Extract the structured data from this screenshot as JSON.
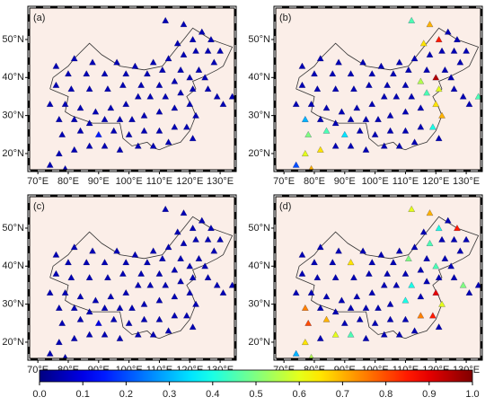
{
  "chart_data": [
    {
      "type": "map",
      "label": "(a)",
      "colormap": "jet",
      "xlim": [
        67,
        135
      ],
      "ylim": [
        15.5,
        58.5
      ],
      "xticks": [
        {
          "value": 70,
          "label": "70°E"
        },
        {
          "value": 80,
          "label": "80°E"
        },
        {
          "value": 90,
          "label": "90°E"
        },
        {
          "value": 100,
          "label": "100°E"
        },
        {
          "value": 110,
          "label": "110°E"
        },
        {
          "value": 120,
          "label": "120°E"
        },
        {
          "value": 130,
          "label": "130°E"
        }
      ],
      "yticks": [
        {
          "value": 20,
          "label": "20°N"
        },
        {
          "value": 30,
          "label": "30°N"
        },
        {
          "value": 40,
          "label": "40°N"
        },
        {
          "value": 50,
          "label": "50°N"
        }
      ],
      "x": [
        112,
        118,
        124,
        127,
        121,
        116,
        130,
        126,
        122,
        118,
        113,
        108,
        102,
        96,
        88,
        82,
        76,
        80,
        86,
        92,
        99,
        106,
        111,
        117,
        123,
        128,
        125,
        120,
        115,
        110,
        104,
        98,
        93,
        87,
        81,
        76,
        79,
        84,
        89,
        94,
        99,
        103,
        107,
        112,
        117,
        121,
        120,
        115,
        110,
        105,
        101,
        97,
        92,
        87,
        82,
        77,
        74,
        78,
        84,
        90,
        95,
        100,
        105,
        110,
        115,
        119,
        122,
        113,
        108,
        103,
        97,
        92,
        87,
        82,
        77,
        74,
        79,
        126,
        129,
        131,
        134,
        121
      ],
      "y": [
        55,
        54,
        52,
        50,
        50,
        49,
        47,
        47,
        47,
        46,
        45,
        44,
        43,
        44,
        44,
        45,
        43,
        41,
        41,
        41,
        41,
        41,
        42,
        42,
        42,
        44,
        40,
        40,
        39,
        38,
        38,
        38,
        37,
        37,
        37,
        38,
        33,
        32,
        31,
        32,
        33,
        35,
        35,
        35,
        36,
        37,
        33,
        32,
        31,
        30,
        29,
        29,
        29,
        28,
        29,
        29,
        33,
        25,
        26,
        25,
        26,
        25,
        26,
        26,
        27,
        27,
        30,
        23,
        22,
        22,
        21,
        22,
        22,
        21,
        20,
        17,
        16,
        37,
        35,
        33,
        35,
        24
      ],
      "values": [
        0.05,
        0.05,
        0.05,
        0.05,
        0.05,
        0.05,
        0.05,
        0.05,
        0.05,
        0.05,
        0.05,
        0.05,
        0.05,
        0.05,
        0.05,
        0.05,
        0.05,
        0.05,
        0.05,
        0.05,
        0.05,
        0.05,
        0.05,
        0.05,
        0.05,
        0.05,
        0.05,
        0.05,
        0.05,
        0.05,
        0.05,
        0.05,
        0.05,
        0.05,
        0.05,
        0.05,
        0.05,
        0.05,
        0.05,
        0.05,
        0.05,
        0.05,
        0.05,
        0.05,
        0.05,
        0.05,
        0.05,
        0.05,
        0.05,
        0.05,
        0.05,
        0.05,
        0.05,
        0.05,
        0.05,
        0.05,
        0.05,
        0.05,
        0.05,
        0.15,
        0.05,
        0.05,
        0.05,
        0.05,
        0.05,
        0.05,
        0.05,
        0.05,
        0.05,
        0.05,
        0.05,
        0.05,
        0.05,
        0.05,
        0.05,
        0.05,
        0.05,
        0.05,
        0.05,
        0.05,
        0.05,
        0.05
      ]
    },
    {
      "type": "map",
      "label": "(b)",
      "colormap": "jet",
      "xlim": [
        67,
        135
      ],
      "ylim": [
        15.5,
        58.5
      ],
      "xticks": [
        {
          "value": 70,
          "label": "70°E"
        },
        {
          "value": 80,
          "label": "80°E"
        },
        {
          "value": 90,
          "label": "90°E"
        },
        {
          "value": 100,
          "label": "100°E"
        },
        {
          "value": 110,
          "label": "110°E"
        },
        {
          "value": 120,
          "label": "120°E"
        },
        {
          "value": 130,
          "label": "130°E"
        }
      ],
      "yticks": [
        {
          "value": 20,
          "label": "20°N"
        },
        {
          "value": 30,
          "label": "30°N"
        },
        {
          "value": 40,
          "label": "40°N"
        },
        {
          "value": 50,
          "label": "50°N"
        }
      ],
      "x": [
        112,
        118,
        124,
        127,
        121,
        116,
        130,
        126,
        122,
        118,
        113,
        108,
        102,
        96,
        88,
        82,
        76,
        80,
        86,
        92,
        99,
        106,
        111,
        117,
        123,
        128,
        125,
        120,
        115,
        110,
        104,
        98,
        93,
        87,
        81,
        76,
        79,
        84,
        89,
        94,
        99,
        103,
        107,
        112,
        117,
        121,
        120,
        115,
        110,
        105,
        101,
        97,
        92,
        87,
        82,
        77,
        74,
        78,
        84,
        90,
        95,
        100,
        105,
        110,
        115,
        119,
        122,
        113,
        108,
        103,
        97,
        92,
        87,
        82,
        77,
        74,
        79,
        126,
        129,
        131,
        134,
        121
      ],
      "y": [
        55,
        54,
        52,
        50,
        50,
        49,
        47,
        47,
        47,
        46,
        45,
        44,
        43,
        44,
        44,
        45,
        43,
        41,
        41,
        41,
        41,
        41,
        42,
        42,
        42,
        44,
        40,
        40,
        39,
        38,
        38,
        38,
        37,
        37,
        37,
        38,
        33,
        32,
        31,
        32,
        33,
        35,
        35,
        35,
        36,
        37,
        33,
        32,
        31,
        30,
        29,
        29,
        29,
        28,
        29,
        29,
        33,
        25,
        26,
        25,
        26,
        25,
        26,
        26,
        27,
        27,
        30,
        23,
        22,
        22,
        21,
        22,
        22,
        21,
        20,
        17,
        16,
        37,
        35,
        33,
        35,
        24
      ],
      "values": [
        0.45,
        0.7,
        0.05,
        0.05,
        0.85,
        0.65,
        0.05,
        0.05,
        0.05,
        0.05,
        0.05,
        0.05,
        0.05,
        0.05,
        0.05,
        0.05,
        0.05,
        0.05,
        0.05,
        0.05,
        0.05,
        0.05,
        0.05,
        0.05,
        0.05,
        0.05,
        0.05,
        0.95,
        0.55,
        0.05,
        0.05,
        0.05,
        0.05,
        0.05,
        0.05,
        0.05,
        0.05,
        0.05,
        0.05,
        0.05,
        0.05,
        0.05,
        0.05,
        0.05,
        0.45,
        0.6,
        0.65,
        0.05,
        0.05,
        0.05,
        0.05,
        0.05,
        0.05,
        0.05,
        0.05,
        0.3,
        0.05,
        0.5,
        0.45,
        0.35,
        0.05,
        0.05,
        0.05,
        0.05,
        0.05,
        0.4,
        0.7,
        0.05,
        0.05,
        0.05,
        0.05,
        0.05,
        0.05,
        0.65,
        0.6,
        0.2,
        0.7,
        0.05,
        0.05,
        0.05,
        0.45,
        0.05
      ]
    },
    {
      "type": "map",
      "label": "(c)",
      "colormap": "jet",
      "xlim": [
        67,
        135
      ],
      "ylim": [
        15.5,
        58.5
      ],
      "xticks": [
        {
          "value": 70,
          "label": "70°E"
        },
        {
          "value": 80,
          "label": "80°E"
        },
        {
          "value": 90,
          "label": "90°E"
        },
        {
          "value": 100,
          "label": "100°E"
        },
        {
          "value": 110,
          "label": "110°E"
        },
        {
          "value": 120,
          "label": "120°E"
        },
        {
          "value": 130,
          "label": "130°E"
        }
      ],
      "yticks": [
        {
          "value": 20,
          "label": "20°N"
        },
        {
          "value": 30,
          "label": "30°N"
        },
        {
          "value": 40,
          "label": "40°N"
        },
        {
          "value": 50,
          "label": "50°N"
        }
      ],
      "x": [
        112,
        118,
        124,
        127,
        121,
        116,
        130,
        126,
        122,
        118,
        113,
        108,
        102,
        96,
        88,
        82,
        76,
        80,
        86,
        92,
        99,
        106,
        111,
        117,
        123,
        128,
        125,
        120,
        115,
        110,
        104,
        98,
        93,
        87,
        81,
        76,
        79,
        84,
        89,
        94,
        99,
        103,
        107,
        112,
        117,
        121,
        120,
        115,
        110,
        105,
        101,
        97,
        92,
        87,
        82,
        77,
        74,
        78,
        84,
        90,
        95,
        100,
        105,
        110,
        115,
        119,
        122,
        113,
        108,
        103,
        97,
        92,
        87,
        82,
        77,
        74,
        79,
        126,
        129,
        131,
        134,
        121
      ],
      "y": [
        55,
        54,
        52,
        50,
        50,
        49,
        47,
        47,
        47,
        46,
        45,
        44,
        43,
        44,
        44,
        45,
        43,
        41,
        41,
        41,
        41,
        41,
        42,
        42,
        42,
        44,
        40,
        40,
        39,
        38,
        38,
        38,
        37,
        37,
        37,
        38,
        33,
        32,
        31,
        32,
        33,
        35,
        35,
        35,
        36,
        37,
        33,
        32,
        31,
        30,
        29,
        29,
        29,
        28,
        29,
        29,
        33,
        25,
        26,
        25,
        26,
        25,
        26,
        26,
        27,
        27,
        30,
        23,
        22,
        22,
        21,
        22,
        22,
        21,
        20,
        17,
        16,
        37,
        35,
        33,
        35,
        24
      ],
      "values": [
        0.05,
        0.05,
        0.05,
        0.05,
        0.05,
        0.05,
        0.05,
        0.05,
        0.05,
        0.05,
        0.05,
        0.05,
        0.05,
        0.05,
        0.05,
        0.05,
        0.05,
        0.05,
        0.05,
        0.05,
        0.05,
        0.05,
        0.05,
        0.05,
        0.05,
        0.05,
        0.05,
        0.05,
        0.05,
        0.05,
        0.05,
        0.05,
        0.05,
        0.05,
        0.05,
        0.05,
        0.05,
        0.05,
        0.05,
        0.05,
        0.05,
        0.05,
        0.05,
        0.05,
        0.05,
        0.05,
        0.05,
        0.05,
        0.05,
        0.05,
        0.05,
        0.05,
        0.05,
        0.05,
        0.05,
        0.05,
        0.05,
        0.05,
        0.05,
        0.1,
        0.05,
        0.05,
        0.05,
        0.05,
        0.05,
        0.05,
        0.05,
        0.05,
        0.05,
        0.05,
        0.05,
        0.05,
        0.05,
        0.05,
        0.05,
        0.05,
        0.05,
        0.05,
        0.05,
        0.05,
        0.05,
        0.05
      ]
    },
    {
      "type": "map",
      "label": "(d)",
      "colormap": "jet",
      "xlim": [
        67,
        135
      ],
      "ylim": [
        15.5,
        58.5
      ],
      "xticks": [
        {
          "value": 70,
          "label": "70°E"
        },
        {
          "value": 80,
          "label": "80°E"
        },
        {
          "value": 90,
          "label": "90°E"
        },
        {
          "value": 100,
          "label": "100°E"
        },
        {
          "value": 110,
          "label": "110°E"
        },
        {
          "value": 120,
          "label": "120°E"
        },
        {
          "value": 130,
          "label": "130°E"
        }
      ],
      "yticks": [
        {
          "value": 20,
          "label": "20°N"
        },
        {
          "value": 30,
          "label": "30°N"
        },
        {
          "value": 40,
          "label": "40°N"
        },
        {
          "value": 50,
          "label": "50°N"
        }
      ],
      "x": [
        112,
        118,
        124,
        127,
        121,
        116,
        130,
        126,
        122,
        118,
        113,
        108,
        102,
        96,
        88,
        82,
        76,
        80,
        86,
        92,
        99,
        106,
        111,
        117,
        123,
        128,
        125,
        120,
        115,
        110,
        104,
        98,
        93,
        87,
        81,
        76,
        79,
        84,
        89,
        94,
        99,
        103,
        107,
        112,
        117,
        121,
        120,
        115,
        110,
        105,
        101,
        97,
        92,
        87,
        82,
        77,
        74,
        78,
        84,
        90,
        95,
        100,
        105,
        110,
        115,
        119,
        122,
        113,
        108,
        103,
        97,
        92,
        87,
        82,
        77,
        74,
        79,
        126,
        129,
        131,
        134,
        121
      ],
      "y": [
        55,
        54,
        52,
        50,
        50,
        49,
        47,
        47,
        47,
        46,
        45,
        44,
        43,
        44,
        44,
        45,
        43,
        41,
        41,
        41,
        41,
        41,
        42,
        42,
        42,
        44,
        40,
        40,
        39,
        38,
        38,
        38,
        37,
        37,
        37,
        38,
        33,
        32,
        31,
        32,
        33,
        35,
        35,
        35,
        36,
        37,
        33,
        32,
        31,
        30,
        29,
        29,
        29,
        28,
        29,
        29,
        33,
        25,
        26,
        25,
        26,
        25,
        26,
        26,
        27,
        27,
        30,
        23,
        22,
        22,
        21,
        22,
        22,
        21,
        20,
        17,
        16,
        37,
        35,
        33,
        35,
        24
      ],
      "values": [
        0.6,
        0.7,
        0.05,
        0.85,
        0.4,
        0.05,
        0.05,
        0.05,
        0.05,
        0.45,
        0.05,
        0.05,
        0.05,
        0.05,
        0.05,
        0.05,
        0.05,
        0.05,
        0.05,
        0.65,
        0.05,
        0.05,
        0.5,
        0.05,
        0.05,
        0.05,
        0.05,
        0.45,
        0.05,
        0.05,
        0.05,
        0.05,
        0.05,
        0.05,
        0.05,
        0.05,
        0.05,
        0.05,
        0.05,
        0.05,
        0.05,
        0.05,
        0.05,
        0.4,
        0.05,
        0.05,
        0.9,
        0.05,
        0.4,
        0.05,
        0.05,
        0.05,
        0.05,
        0.05,
        0.05,
        0.75,
        0.05,
        0.8,
        0.7,
        0.05,
        0.05,
        0.05,
        0.05,
        0.05,
        0.75,
        0.85,
        0.6,
        0.05,
        0.05,
        0.05,
        0.05,
        0.45,
        0.6,
        0.05,
        0.65,
        0.3,
        0.55,
        0.05,
        0.5,
        0.05,
        0.05,
        0.05
      ]
    }
  ],
  "colorbar": {
    "colormap": "jet",
    "lim": [
      0,
      1
    ],
    "ticks": [
      {
        "value": 0,
        "label": "0.0"
      },
      {
        "value": 0.1,
        "label": "0.1"
      },
      {
        "value": 0.2,
        "label": "0.2"
      },
      {
        "value": 0.3,
        "label": "0.3"
      },
      {
        "value": 0.4,
        "label": "0.4"
      },
      {
        "value": 0.5,
        "label": "0.5"
      },
      {
        "value": 0.6,
        "label": "0.6"
      },
      {
        "value": 0.7,
        "label": "0.7"
      },
      {
        "value": 0.8,
        "label": "0.8"
      },
      {
        "value": 0.9,
        "label": "0.9"
      },
      {
        "value": 1,
        "label": "1.0"
      }
    ]
  }
}
